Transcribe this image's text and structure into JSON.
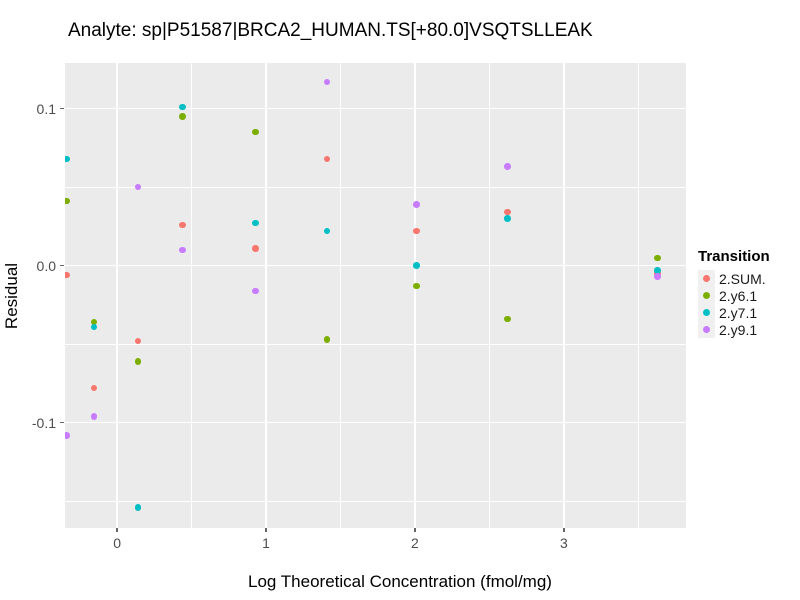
{
  "title": "Analyte: sp|P51587|BRCA2_HUMAN.TS[+80.0]VSQTSLLEAK",
  "chart_data": {
    "type": "scatter",
    "title": "Analyte: sp|P51587|BRCA2_HUMAN.TS[+80.0]VSQTSLLEAK",
    "xlabel": "Log Theoretical Concentration (fmol/mg)",
    "ylabel": "Residual",
    "xlim": [
      -0.35,
      3.82
    ],
    "ylim": [
      -0.167,
      0.129
    ],
    "x_ticks": [
      0,
      1,
      2,
      3
    ],
    "x_tick_labels": [
      "0",
      "1",
      "2",
      "3"
    ],
    "y_ticks": [
      0.1,
      0.0,
      -0.1
    ],
    "y_tick_labels": [
      "0.1",
      "0.0",
      "-0.1"
    ],
    "x_minor_gridlines": [
      0.5,
      1.5,
      2.5,
      3.5
    ],
    "y_minor_gridlines": [
      0.05,
      -0.05,
      -0.15
    ],
    "grid": true,
    "panel_background": "#EBEBEB",
    "gridline_color": "#FFFFFF",
    "legend_title": "Transition",
    "legend_position": "right",
    "x": [
      -0.34,
      -0.155,
      0.14,
      0.44,
      0.93,
      1.41,
      2.01,
      2.62,
      3.63
    ],
    "series": [
      {
        "name": "2.SUM.",
        "color": "#F8766D",
        "points": [
          [
            -0.34,
            -0.006
          ],
          [
            -0.155,
            -0.078
          ],
          [
            0.14,
            -0.048
          ],
          [
            0.44,
            0.026
          ],
          [
            0.93,
            0.011
          ],
          [
            1.41,
            0.068
          ],
          [
            2.01,
            0.022
          ],
          [
            2.62,
            0.034
          ],
          [
            3.63,
            -0.005
          ]
        ]
      },
      {
        "name": "2.y6.1",
        "color": "#7CAE00",
        "points": [
          [
            -0.34,
            0.041
          ],
          [
            -0.155,
            -0.036
          ],
          [
            0.14,
            -0.061
          ],
          [
            0.44,
            0.095
          ],
          [
            0.93,
            0.085
          ],
          [
            1.41,
            -0.047
          ],
          [
            2.01,
            -0.013
          ],
          [
            2.62,
            -0.034
          ],
          [
            3.63,
            0.005
          ]
        ]
      },
      {
        "name": "2.y7.1",
        "color": "#00BFC4",
        "points": [
          [
            -0.34,
            0.068
          ],
          [
            -0.155,
            -0.039
          ],
          [
            0.14,
            -0.154
          ],
          [
            0.44,
            0.101
          ],
          [
            0.93,
            0.027
          ],
          [
            1.41,
            0.022
          ],
          [
            2.01,
            0.0
          ],
          [
            2.62,
            0.03
          ],
          [
            3.63,
            -0.003
          ]
        ]
      },
      {
        "name": "2.y9.1",
        "color": "#C77CFF",
        "points": [
          [
            -0.34,
            -0.108
          ],
          [
            -0.155,
            -0.096
          ],
          [
            0.14,
            0.05
          ],
          [
            0.44,
            0.01
          ],
          [
            0.93,
            -0.016
          ],
          [
            1.41,
            0.117
          ],
          [
            2.01,
            0.039
          ],
          [
            2.62,
            0.063
          ],
          [
            3.63,
            -0.007
          ]
        ]
      }
    ]
  }
}
